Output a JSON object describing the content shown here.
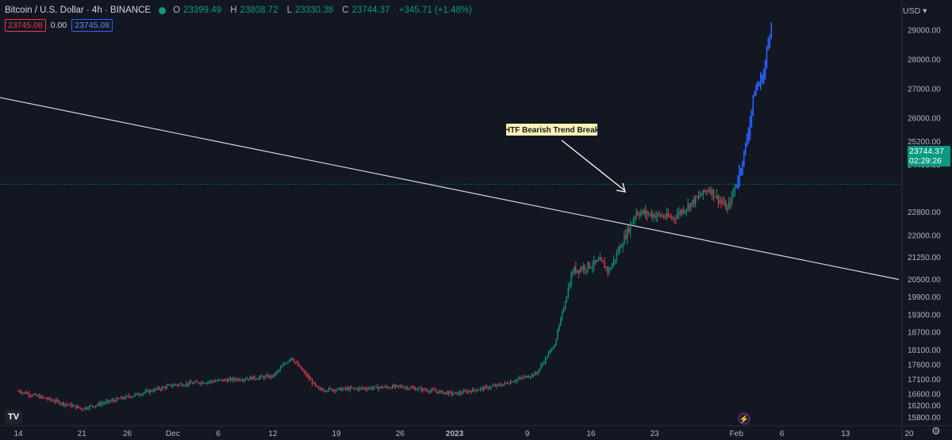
{
  "header": {
    "symbol": "Bitcoin / U.S. Dollar · 4h · BINANCE",
    "open_label": "O",
    "open": "23399.49",
    "high_label": "H",
    "high": "23808.72",
    "low_label": "L",
    "low": "23330.38",
    "close_label": "C",
    "close": "23744.37",
    "change": "+345.71 (+1.48%)",
    "bid": "23745.08",
    "spread": "0.00",
    "ask": "23745.08"
  },
  "price_axis": {
    "currency": "USD",
    "ticks": [
      "29000.00",
      "28000.00",
      "27000.00",
      "26000.00",
      "25200.00",
      "24400.00",
      "22800.00",
      "22000.00",
      "21250.00",
      "20500.00",
      "19900.00",
      "19300.00",
      "18700.00",
      "18100.00",
      "17600.00",
      "17100.00",
      "16600.00",
      "16200.00",
      "15800.00"
    ],
    "last_price": "23744.37",
    "countdown": "02:29:26"
  },
  "time_axis": {
    "ticks": [
      "14",
      "21",
      "26",
      "Dec",
      "6",
      "12",
      "19",
      "26",
      "2023",
      "9",
      "16",
      "23",
      "Feb",
      "6",
      "13",
      "20"
    ]
  },
  "annotation": {
    "text": "HTF Bearish Trend Break"
  },
  "logo": "TV",
  "colors": {
    "up": "#089981",
    "down": "#f23645",
    "projection": "#2962ff",
    "background": "#131722",
    "trendline": "#d1d4dc"
  },
  "chart_data": {
    "type": "candlestick",
    "title": "Bitcoin / U.S. Dollar · 4h · BINANCE",
    "timeframe": "4h",
    "x_range": [
      "Nov 14",
      "Feb 20"
    ],
    "y_range": [
      15650,
      29700
    ],
    "path_key_points": [
      {
        "date": "Nov 14",
        "price": 16700
      },
      {
        "date": "Nov 21",
        "price": 16100
      },
      {
        "date": "Nov 26",
        "price": 16500
      },
      {
        "date": "Dec 1",
        "price": 16900
      },
      {
        "date": "Dec 6",
        "price": 17050
      },
      {
        "date": "Dec 12",
        "price": 17200
      },
      {
        "date": "Dec 14",
        "price": 17850
      },
      {
        "date": "Dec 17",
        "price": 16750
      },
      {
        "date": "Dec 19",
        "price": 16750
      },
      {
        "date": "Dec 26",
        "price": 16850
      },
      {
        "date": "Jan 1",
        "price": 16600
      },
      {
        "date": "Jan 6",
        "price": 16900
      },
      {
        "date": "Jan 10",
        "price": 17300
      },
      {
        "date": "Jan 12",
        "price": 18300
      },
      {
        "date": "Jan 14",
        "price": 20800
      },
      {
        "date": "Jan 17",
        "price": 21100
      },
      {
        "date": "Jan 18",
        "price": 20800
      },
      {
        "date": "Jan 21",
        "price": 22800
      },
      {
        "date": "Jan 25",
        "price": 22600
      },
      {
        "date": "Jan 29",
        "price": 23600
      },
      {
        "date": "Jan 31",
        "price": 22900
      },
      {
        "date": "Feb 1",
        "price": 23744
      }
    ],
    "projection": [
      {
        "date": "Feb 1",
        "price": 23744
      },
      {
        "date": "Feb 2",
        "price": 25000
      },
      {
        "date": "Feb 3",
        "price": 26900
      },
      {
        "date": "Feb 4",
        "price": 27500
      },
      {
        "date": "Feb 5",
        "price": 29700
      }
    ],
    "trendline": {
      "from": {
        "date": "Nov 14",
        "price": 26700
      },
      "to": {
        "date": "Feb 20",
        "price": 20500
      }
    },
    "last_price": 23744.37
  }
}
